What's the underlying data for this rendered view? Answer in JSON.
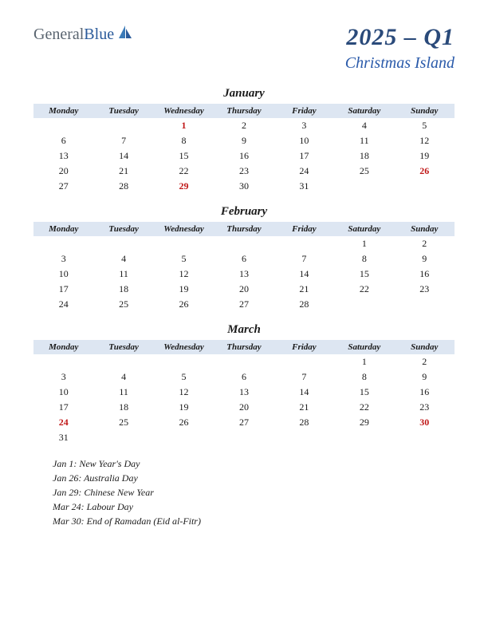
{
  "logo": {
    "part1": "General",
    "part2": "Blue"
  },
  "title": "2025 – Q1",
  "subtitle": "Christmas Island",
  "colors": {
    "header_bg": "#dde6f2",
    "holiday_text": "#c01818",
    "title_color": "#2a4a7a",
    "subtitle_color": "#2a5aaa",
    "logo_gray": "#5a6570",
    "logo_blue": "#2a5a9a",
    "text": "#1a1a1a",
    "background": "#ffffff"
  },
  "day_headers": [
    "Monday",
    "Tuesday",
    "Wednesday",
    "Thursday",
    "Friday",
    "Saturday",
    "Sunday"
  ],
  "months": [
    {
      "name": "January",
      "weeks": [
        [
          {
            "d": "",
            "h": false
          },
          {
            "d": "",
            "h": false
          },
          {
            "d": "1",
            "h": true
          },
          {
            "d": "2",
            "h": false
          },
          {
            "d": "3",
            "h": false
          },
          {
            "d": "4",
            "h": false
          },
          {
            "d": "5",
            "h": false
          }
        ],
        [
          {
            "d": "6",
            "h": false
          },
          {
            "d": "7",
            "h": false
          },
          {
            "d": "8",
            "h": false
          },
          {
            "d": "9",
            "h": false
          },
          {
            "d": "10",
            "h": false
          },
          {
            "d": "11",
            "h": false
          },
          {
            "d": "12",
            "h": false
          }
        ],
        [
          {
            "d": "13",
            "h": false
          },
          {
            "d": "14",
            "h": false
          },
          {
            "d": "15",
            "h": false
          },
          {
            "d": "16",
            "h": false
          },
          {
            "d": "17",
            "h": false
          },
          {
            "d": "18",
            "h": false
          },
          {
            "d": "19",
            "h": false
          }
        ],
        [
          {
            "d": "20",
            "h": false
          },
          {
            "d": "21",
            "h": false
          },
          {
            "d": "22",
            "h": false
          },
          {
            "d": "23",
            "h": false
          },
          {
            "d": "24",
            "h": false
          },
          {
            "d": "25",
            "h": false
          },
          {
            "d": "26",
            "h": true
          }
        ],
        [
          {
            "d": "27",
            "h": false
          },
          {
            "d": "28",
            "h": false
          },
          {
            "d": "29",
            "h": true
          },
          {
            "d": "30",
            "h": false
          },
          {
            "d": "31",
            "h": false
          },
          {
            "d": "",
            "h": false
          },
          {
            "d": "",
            "h": false
          }
        ]
      ]
    },
    {
      "name": "February",
      "weeks": [
        [
          {
            "d": "",
            "h": false
          },
          {
            "d": "",
            "h": false
          },
          {
            "d": "",
            "h": false
          },
          {
            "d": "",
            "h": false
          },
          {
            "d": "",
            "h": false
          },
          {
            "d": "1",
            "h": false
          },
          {
            "d": "2",
            "h": false
          }
        ],
        [
          {
            "d": "3",
            "h": false
          },
          {
            "d": "4",
            "h": false
          },
          {
            "d": "5",
            "h": false
          },
          {
            "d": "6",
            "h": false
          },
          {
            "d": "7",
            "h": false
          },
          {
            "d": "8",
            "h": false
          },
          {
            "d": "9",
            "h": false
          }
        ],
        [
          {
            "d": "10",
            "h": false
          },
          {
            "d": "11",
            "h": false
          },
          {
            "d": "12",
            "h": false
          },
          {
            "d": "13",
            "h": false
          },
          {
            "d": "14",
            "h": false
          },
          {
            "d": "15",
            "h": false
          },
          {
            "d": "16",
            "h": false
          }
        ],
        [
          {
            "d": "17",
            "h": false
          },
          {
            "d": "18",
            "h": false
          },
          {
            "d": "19",
            "h": false
          },
          {
            "d": "20",
            "h": false
          },
          {
            "d": "21",
            "h": false
          },
          {
            "d": "22",
            "h": false
          },
          {
            "d": "23",
            "h": false
          }
        ],
        [
          {
            "d": "24",
            "h": false
          },
          {
            "d": "25",
            "h": false
          },
          {
            "d": "26",
            "h": false
          },
          {
            "d": "27",
            "h": false
          },
          {
            "d": "28",
            "h": false
          },
          {
            "d": "",
            "h": false
          },
          {
            "d": "",
            "h": false
          }
        ]
      ]
    },
    {
      "name": "March",
      "weeks": [
        [
          {
            "d": "",
            "h": false
          },
          {
            "d": "",
            "h": false
          },
          {
            "d": "",
            "h": false
          },
          {
            "d": "",
            "h": false
          },
          {
            "d": "",
            "h": false
          },
          {
            "d": "1",
            "h": false
          },
          {
            "d": "2",
            "h": false
          }
        ],
        [
          {
            "d": "3",
            "h": false
          },
          {
            "d": "4",
            "h": false
          },
          {
            "d": "5",
            "h": false
          },
          {
            "d": "6",
            "h": false
          },
          {
            "d": "7",
            "h": false
          },
          {
            "d": "8",
            "h": false
          },
          {
            "d": "9",
            "h": false
          }
        ],
        [
          {
            "d": "10",
            "h": false
          },
          {
            "d": "11",
            "h": false
          },
          {
            "d": "12",
            "h": false
          },
          {
            "d": "13",
            "h": false
          },
          {
            "d": "14",
            "h": false
          },
          {
            "d": "15",
            "h": false
          },
          {
            "d": "16",
            "h": false
          }
        ],
        [
          {
            "d": "17",
            "h": false
          },
          {
            "d": "18",
            "h": false
          },
          {
            "d": "19",
            "h": false
          },
          {
            "d": "20",
            "h": false
          },
          {
            "d": "21",
            "h": false
          },
          {
            "d": "22",
            "h": false
          },
          {
            "d": "23",
            "h": false
          }
        ],
        [
          {
            "d": "24",
            "h": true
          },
          {
            "d": "25",
            "h": false
          },
          {
            "d": "26",
            "h": false
          },
          {
            "d": "27",
            "h": false
          },
          {
            "d": "28",
            "h": false
          },
          {
            "d": "29",
            "h": false
          },
          {
            "d": "30",
            "h": true
          }
        ],
        [
          {
            "d": "31",
            "h": false
          },
          {
            "d": "",
            "h": false
          },
          {
            "d": "",
            "h": false
          },
          {
            "d": "",
            "h": false
          },
          {
            "d": "",
            "h": false
          },
          {
            "d": "",
            "h": false
          },
          {
            "d": "",
            "h": false
          }
        ]
      ]
    }
  ],
  "holidays_list": [
    "Jan 1: New Year's Day",
    "Jan 26: Australia Day",
    "Jan 29: Chinese New Year",
    "Mar 24: Labour Day",
    "Mar 30: End of Ramadan (Eid al-Fitr)"
  ]
}
